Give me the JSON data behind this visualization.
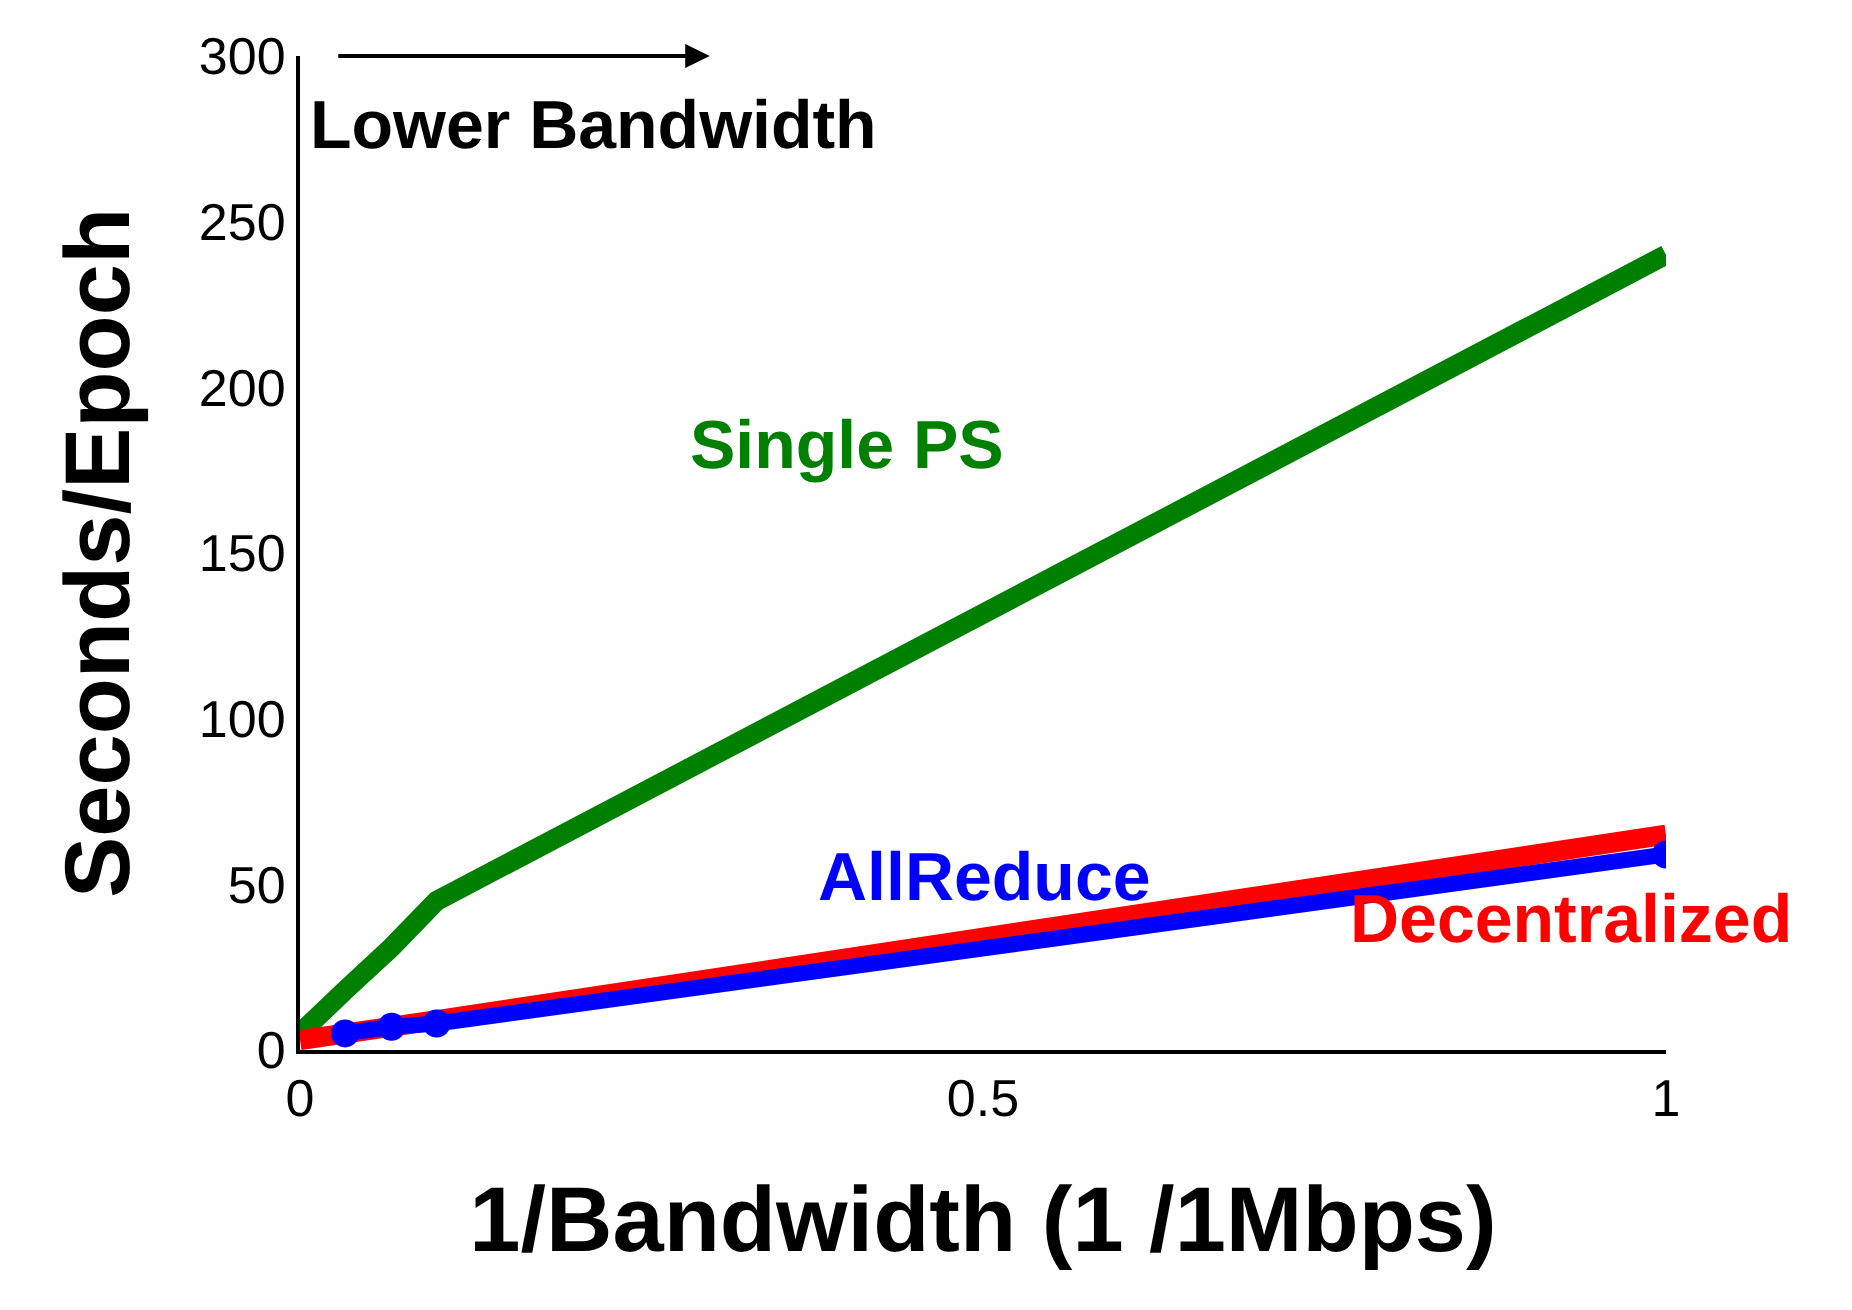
{
  "chart_data": {
    "type": "line",
    "xlabel": "1/Bandwidth (1 /1Mbps)",
    "ylabel": "Seconds/Epoch",
    "x": [
      0,
      0.033,
      0.067,
      0.1,
      1
    ],
    "series": [
      {
        "name": "Single PS",
        "color": "#008000",
        "values": [
          5,
          18,
          31,
          45,
          240
        ]
      },
      {
        "name": "Decentralized",
        "color": "#ff0000",
        "x": [
          0,
          0.1,
          1
        ],
        "values": [
          3,
          9,
          65
        ]
      },
      {
        "name": "AllReduce",
        "color": "#0000ff",
        "x": [
          0.033,
          0.067,
          0.1,
          1
        ],
        "values": [
          5,
          7,
          8,
          59
        ],
        "marker": "circle"
      }
    ],
    "annotations": [
      "Lower Bandwidth"
    ],
    "xlim": [
      0,
      1
    ],
    "xticks": [
      0,
      0.5,
      1
    ],
    "ylim": [
      0,
      300
    ],
    "yticks": [
      0,
      50,
      100,
      150,
      200,
      250,
      300
    ]
  }
}
